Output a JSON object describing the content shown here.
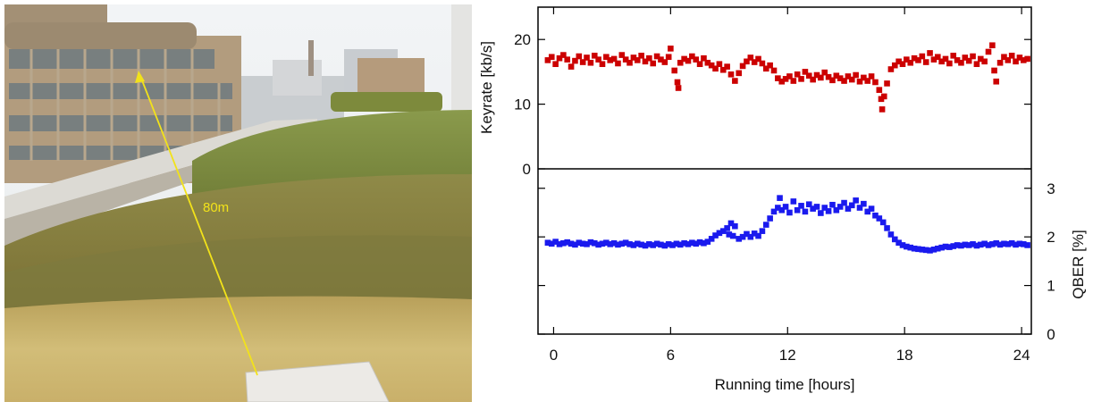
{
  "photo": {
    "distance_label": "80m",
    "colors": {
      "arrow": "#f2e21a"
    }
  },
  "chart_data": {
    "type": "scatter",
    "x": {
      "label": "Running time [hours]",
      "ticks": [
        0,
        6,
        12,
        18,
        24
      ],
      "lim": [
        -0.8,
        24.5
      ]
    },
    "panels": [
      {
        "id": "keyrate",
        "ylabel": "Keyrate [kb/s]",
        "ylim": [
          0,
          25
        ],
        "ticks": [
          0,
          10,
          20
        ],
        "axis_side": "left",
        "color": "#cc0000",
        "series": {
          "points": [
            [
              -0.3,
              16.8
            ],
            [
              -0.1,
              17.3
            ],
            [
              0.1,
              16.2
            ],
            [
              0.3,
              17.1
            ],
            [
              0.5,
              17.6
            ],
            [
              0.7,
              16.9
            ],
            [
              0.9,
              15.8
            ],
            [
              1.1,
              16.7
            ],
            [
              1.3,
              17.4
            ],
            [
              1.5,
              16.5
            ],
            [
              1.7,
              17.2
            ],
            [
              1.9,
              16.4
            ],
            [
              2.1,
              17.5
            ],
            [
              2.3,
              16.9
            ],
            [
              2.5,
              16.2
            ],
            [
              2.7,
              17.3
            ],
            [
              2.9,
              16.8
            ],
            [
              3.1,
              17.0
            ],
            [
              3.3,
              16.3
            ],
            [
              3.5,
              17.6
            ],
            [
              3.7,
              16.9
            ],
            [
              3.9,
              16.4
            ],
            [
              4.1,
              17.2
            ],
            [
              4.3,
              16.8
            ],
            [
              4.5,
              17.5
            ],
            [
              4.7,
              16.6
            ],
            [
              4.9,
              17.1
            ],
            [
              5.1,
              16.3
            ],
            [
              5.3,
              17.4
            ],
            [
              5.5,
              16.9
            ],
            [
              5.7,
              16.5
            ],
            [
              5.9,
              17.3
            ],
            [
              6.0,
              18.6
            ],
            [
              6.2,
              15.2
            ],
            [
              6.35,
              13.4
            ],
            [
              6.4,
              12.5
            ],
            [
              6.5,
              16.4
            ],
            [
              6.7,
              17.0
            ],
            [
              6.9,
              16.7
            ],
            [
              7.1,
              17.4
            ],
            [
              7.3,
              16.9
            ],
            [
              7.5,
              16.2
            ],
            [
              7.7,
              17.1
            ],
            [
              7.9,
              16.4
            ],
            [
              8.1,
              16.0
            ],
            [
              8.3,
              15.5
            ],
            [
              8.5,
              16.2
            ],
            [
              8.7,
              15.3
            ],
            [
              8.9,
              15.8
            ],
            [
              9.1,
              14.6
            ],
            [
              9.3,
              13.6
            ],
            [
              9.5,
              14.8
            ],
            [
              9.7,
              15.9
            ],
            [
              9.9,
              16.6
            ],
            [
              10.1,
              17.2
            ],
            [
              10.3,
              16.5
            ],
            [
              10.5,
              17.0
            ],
            [
              10.7,
              16.3
            ],
            [
              10.9,
              15.5
            ],
            [
              11.1,
              16.0
            ],
            [
              11.3,
              15.2
            ],
            [
              11.5,
              14.0
            ],
            [
              11.7,
              13.5
            ],
            [
              11.9,
              13.9
            ],
            [
              12.1,
              14.3
            ],
            [
              12.3,
              13.6
            ],
            [
              12.5,
              14.6
            ],
            [
              12.7,
              13.9
            ],
            [
              12.9,
              15.0
            ],
            [
              13.1,
              14.4
            ],
            [
              13.3,
              13.8
            ],
            [
              13.5,
              14.5
            ],
            [
              13.7,
              14.1
            ],
            [
              13.9,
              14.9
            ],
            [
              14.1,
              14.2
            ],
            [
              14.3,
              13.7
            ],
            [
              14.5,
              14.4
            ],
            [
              14.7,
              14.0
            ],
            [
              14.9,
              13.6
            ],
            [
              15.1,
              14.3
            ],
            [
              15.3,
              13.8
            ],
            [
              15.5,
              14.5
            ],
            [
              15.7,
              13.5
            ],
            [
              15.9,
              14.1
            ],
            [
              16.1,
              13.6
            ],
            [
              16.3,
              14.3
            ],
            [
              16.5,
              13.4
            ],
            [
              16.7,
              12.2
            ],
            [
              16.8,
              10.8
            ],
            [
              16.85,
              9.2
            ],
            [
              16.95,
              11.2
            ],
            [
              17.1,
              13.2
            ],
            [
              17.3,
              15.4
            ],
            [
              17.5,
              16.0
            ],
            [
              17.7,
              16.6
            ],
            [
              17.9,
              16.2
            ],
            [
              18.1,
              16.9
            ],
            [
              18.3,
              16.4
            ],
            [
              18.5,
              17.1
            ],
            [
              18.7,
              16.8
            ],
            [
              18.9,
              17.4
            ],
            [
              19.1,
              16.5
            ],
            [
              19.3,
              17.9
            ],
            [
              19.5,
              16.9
            ],
            [
              19.7,
              17.3
            ],
            [
              19.9,
              16.6
            ],
            [
              20.1,
              17.0
            ],
            [
              20.3,
              16.3
            ],
            [
              20.5,
              17.5
            ],
            [
              20.7,
              16.8
            ],
            [
              20.9,
              16.4
            ],
            [
              21.1,
              17.2
            ],
            [
              21.3,
              16.7
            ],
            [
              21.5,
              17.4
            ],
            [
              21.7,
              16.2
            ],
            [
              21.9,
              17.0
            ],
            [
              22.1,
              16.6
            ],
            [
              22.3,
              18.1
            ],
            [
              22.5,
              19.1
            ],
            [
              22.6,
              15.2
            ],
            [
              22.7,
              13.5
            ],
            [
              22.9,
              16.4
            ],
            [
              23.1,
              17.3
            ],
            [
              23.3,
              16.8
            ],
            [
              23.5,
              17.5
            ],
            [
              23.7,
              16.6
            ],
            [
              23.9,
              17.2
            ],
            [
              24.1,
              16.8
            ],
            [
              24.3,
              17.0
            ]
          ]
        }
      },
      {
        "id": "qber",
        "ylabel": "QBER [%]",
        "ylim": [
          0,
          3.4
        ],
        "ticks": [
          0,
          1,
          2,
          3
        ],
        "axis_side": "right",
        "color": "#1a1aee",
        "series": {
          "points": [
            [
              -0.3,
              1.88
            ],
            [
              -0.1,
              1.86
            ],
            [
              0.1,
              1.9
            ],
            [
              0.3,
              1.85
            ],
            [
              0.5,
              1.87
            ],
            [
              0.7,
              1.89
            ],
            [
              0.9,
              1.86
            ],
            [
              1.1,
              1.84
            ],
            [
              1.3,
              1.88
            ],
            [
              1.5,
              1.86
            ],
            [
              1.7,
              1.85
            ],
            [
              1.9,
              1.89
            ],
            [
              2.1,
              1.87
            ],
            [
              2.3,
              1.84
            ],
            [
              2.5,
              1.86
            ],
            [
              2.7,
              1.88
            ],
            [
              2.9,
              1.85
            ],
            [
              3.1,
              1.87
            ],
            [
              3.3,
              1.84
            ],
            [
              3.5,
              1.86
            ],
            [
              3.7,
              1.88
            ],
            [
              3.9,
              1.85
            ],
            [
              4.1,
              1.83
            ],
            [
              4.3,
              1.86
            ],
            [
              4.5,
              1.84
            ],
            [
              4.7,
              1.82
            ],
            [
              4.9,
              1.85
            ],
            [
              5.1,
              1.83
            ],
            [
              5.3,
              1.86
            ],
            [
              5.5,
              1.84
            ],
            [
              5.7,
              1.82
            ],
            [
              5.9,
              1.85
            ],
            [
              6.1,
              1.83
            ],
            [
              6.3,
              1.86
            ],
            [
              6.5,
              1.84
            ],
            [
              6.7,
              1.87
            ],
            [
              6.9,
              1.85
            ],
            [
              7.1,
              1.88
            ],
            [
              7.3,
              1.86
            ],
            [
              7.5,
              1.89
            ],
            [
              7.7,
              1.87
            ],
            [
              7.9,
              1.9
            ],
            [
              8.1,
              1.96
            ],
            [
              8.3,
              2.03
            ],
            [
              8.5,
              2.08
            ],
            [
              8.7,
              2.12
            ],
            [
              8.9,
              2.18
            ],
            [
              9.0,
              2.05
            ],
            [
              9.1,
              2.28
            ],
            [
              9.2,
              2.02
            ],
            [
              9.3,
              2.22
            ],
            [
              9.5,
              1.96
            ],
            [
              9.7,
              2.0
            ],
            [
              9.9,
              2.06
            ],
            [
              10.1,
              2.0
            ],
            [
              10.3,
              2.07
            ],
            [
              10.5,
              2.02
            ],
            [
              10.7,
              2.12
            ],
            [
              10.9,
              2.25
            ],
            [
              11.1,
              2.38
            ],
            [
              11.3,
              2.52
            ],
            [
              11.5,
              2.6
            ],
            [
              11.6,
              2.8
            ],
            [
              11.7,
              2.55
            ],
            [
              11.9,
              2.62
            ],
            [
              12.1,
              2.5
            ],
            [
              12.3,
              2.73
            ],
            [
              12.5,
              2.55
            ],
            [
              12.7,
              2.64
            ],
            [
              12.9,
              2.52
            ],
            [
              13.1,
              2.67
            ],
            [
              13.3,
              2.58
            ],
            [
              13.5,
              2.62
            ],
            [
              13.7,
              2.49
            ],
            [
              13.9,
              2.6
            ],
            [
              14.1,
              2.53
            ],
            [
              14.3,
              2.66
            ],
            [
              14.5,
              2.55
            ],
            [
              14.7,
              2.62
            ],
            [
              14.9,
              2.7
            ],
            [
              15.1,
              2.58
            ],
            [
              15.3,
              2.65
            ],
            [
              15.5,
              2.75
            ],
            [
              15.7,
              2.6
            ],
            [
              15.9,
              2.68
            ],
            [
              16.1,
              2.52
            ],
            [
              16.3,
              2.58
            ],
            [
              16.5,
              2.44
            ],
            [
              16.7,
              2.38
            ],
            [
              16.9,
              2.3
            ],
            [
              17.1,
              2.18
            ],
            [
              17.3,
              2.05
            ],
            [
              17.5,
              1.95
            ],
            [
              17.7,
              1.88
            ],
            [
              17.9,
              1.83
            ],
            [
              18.1,
              1.8
            ],
            [
              18.3,
              1.78
            ],
            [
              18.5,
              1.76
            ],
            [
              18.7,
              1.75
            ],
            [
              18.9,
              1.74
            ],
            [
              19.1,
              1.73
            ],
            [
              19.3,
              1.72
            ],
            [
              19.5,
              1.74
            ],
            [
              19.7,
              1.76
            ],
            [
              19.9,
              1.78
            ],
            [
              20.1,
              1.8
            ],
            [
              20.3,
              1.79
            ],
            [
              20.5,
              1.81
            ],
            [
              20.7,
              1.83
            ],
            [
              20.9,
              1.82
            ],
            [
              21.1,
              1.84
            ],
            [
              21.3,
              1.83
            ],
            [
              21.5,
              1.85
            ],
            [
              21.7,
              1.82
            ],
            [
              21.9,
              1.84
            ],
            [
              22.1,
              1.86
            ],
            [
              22.3,
              1.83
            ],
            [
              22.5,
              1.85
            ],
            [
              22.7,
              1.87
            ],
            [
              22.9,
              1.84
            ],
            [
              23.1,
              1.86
            ],
            [
              23.3,
              1.85
            ],
            [
              23.5,
              1.87
            ],
            [
              23.7,
              1.84
            ],
            [
              23.9,
              1.86
            ],
            [
              24.1,
              1.85
            ],
            [
              24.3,
              1.83
            ]
          ]
        }
      }
    ],
    "grid": false,
    "legend": "none"
  }
}
